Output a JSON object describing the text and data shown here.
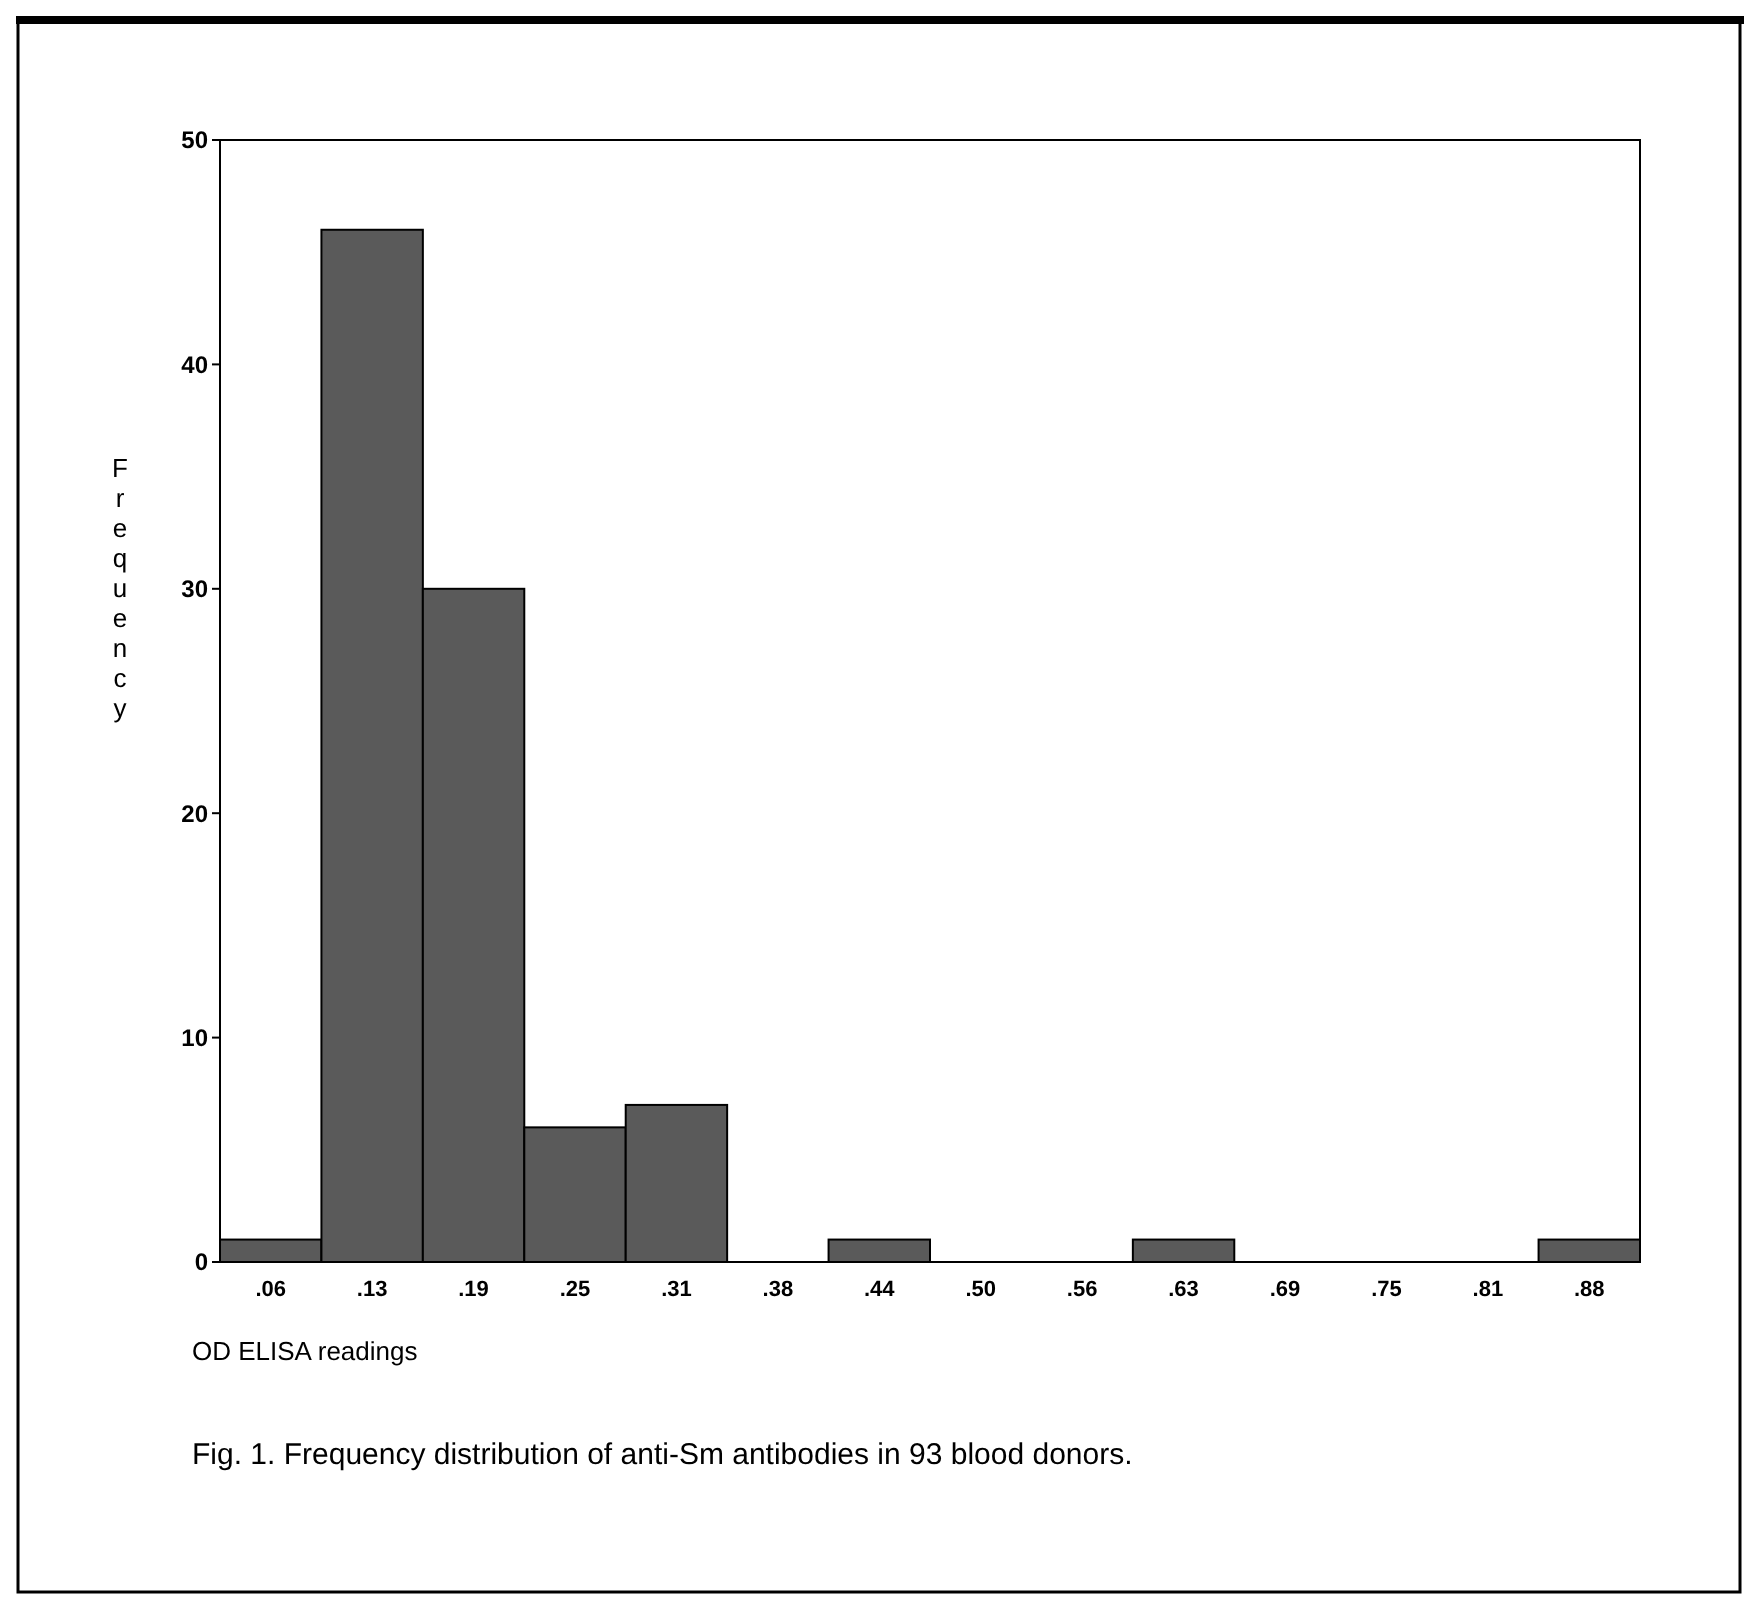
{
  "chart_data": {
    "type": "bar",
    "xlabel": "OD ELISA readings",
    "ylabel": "Frequency",
    "categories": [
      ".06",
      ".13",
      ".19",
      ".25",
      ".31",
      ".38",
      ".44",
      ".50",
      ".56",
      ".63",
      ".69",
      ".75",
      ".81",
      ".88"
    ],
    "values": [
      1,
      46,
      30,
      6,
      7,
      0,
      1,
      0,
      0,
      1,
      0,
      0,
      0,
      1
    ],
    "color": "#5a5a5a",
    "ylim": [
      0,
      50
    ],
    "yticks": [
      0,
      10,
      20,
      30,
      40,
      50
    ],
    "grid": false,
    "annotations": [
      "Fig. 1. Frequency distribution of anti-Sm antibodies in 93 blood donors."
    ]
  }
}
